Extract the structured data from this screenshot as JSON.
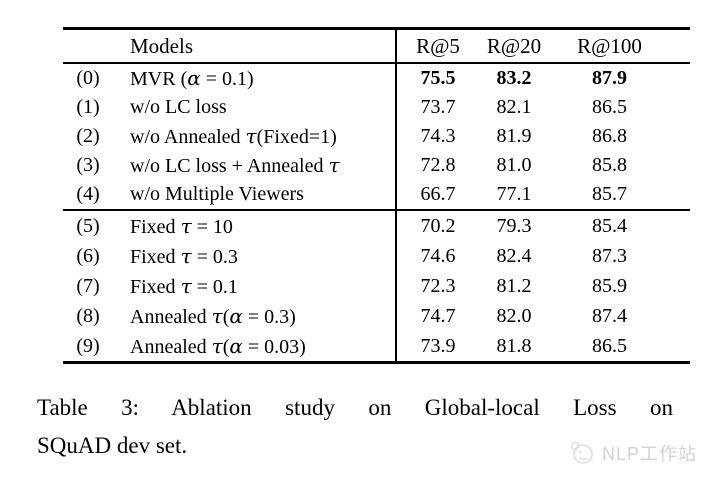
{
  "page": {
    "background": "#ffffff",
    "text_color": "#000000"
  },
  "table": {
    "header": {
      "models_label": "Models",
      "metric_labels": [
        "R@5",
        "R@20",
        "R@100"
      ]
    },
    "groups": [
      {
        "name": "ablation-components",
        "rows": [
          {
            "idx": "(0)",
            "model": "MVR (α = 0.1)",
            "values": [
              "75.5",
              "83.2",
              "87.9"
            ],
            "bold": true
          },
          {
            "idx": "(1)",
            "model": "w/o LC loss",
            "values": [
              "73.7",
              "82.1",
              "86.5"
            ],
            "bold": false
          },
          {
            "idx": "(2)",
            "model": "w/o Annealed τ(Fixed=1)",
            "values": [
              "74.3",
              "81.9",
              "86.8"
            ],
            "bold": false
          },
          {
            "idx": "(3)",
            "model": "w/o LC loss + Annealed τ",
            "values": [
              "72.8",
              "81.0",
              "85.8"
            ],
            "bold": false
          },
          {
            "idx": "(4)",
            "model": "w/o Multiple Viewers",
            "values": [
              "66.7",
              "77.1",
              "85.7"
            ],
            "bold": false
          }
        ]
      },
      {
        "name": "temperature-settings",
        "rows": [
          {
            "idx": "(5)",
            "model": "Fixed τ = 10",
            "values": [
              "70.2",
              "79.3",
              "85.4"
            ],
            "bold": false
          },
          {
            "idx": "(6)",
            "model": "Fixed τ = 0.3",
            "values": [
              "74.6",
              "82.4",
              "87.3"
            ],
            "bold": false
          },
          {
            "idx": "(7)",
            "model": "Fixed τ = 0.1",
            "values": [
              "72.3",
              "81.2",
              "85.9"
            ],
            "bold": false
          },
          {
            "idx": "(8)",
            "model": "Annealed τ(α = 0.3)",
            "values": [
              "74.7",
              "82.0",
              "87.4"
            ],
            "bold": false
          },
          {
            "idx": "(9)",
            "model": "Annealed τ(α = 0.03)",
            "values": [
              "73.9",
              "81.8",
              "86.5"
            ],
            "bold": false
          }
        ]
      }
    ]
  },
  "caption": {
    "line1": "Table 3: Ablation study on Global-local Loss on",
    "line2": "SQuAD dev set.",
    "full": "Table 3: Ablation study on Global-local Loss on SQuAD dev set."
  },
  "watermark": {
    "text": "NLP工作站",
    "color": "#d2d2d2"
  }
}
